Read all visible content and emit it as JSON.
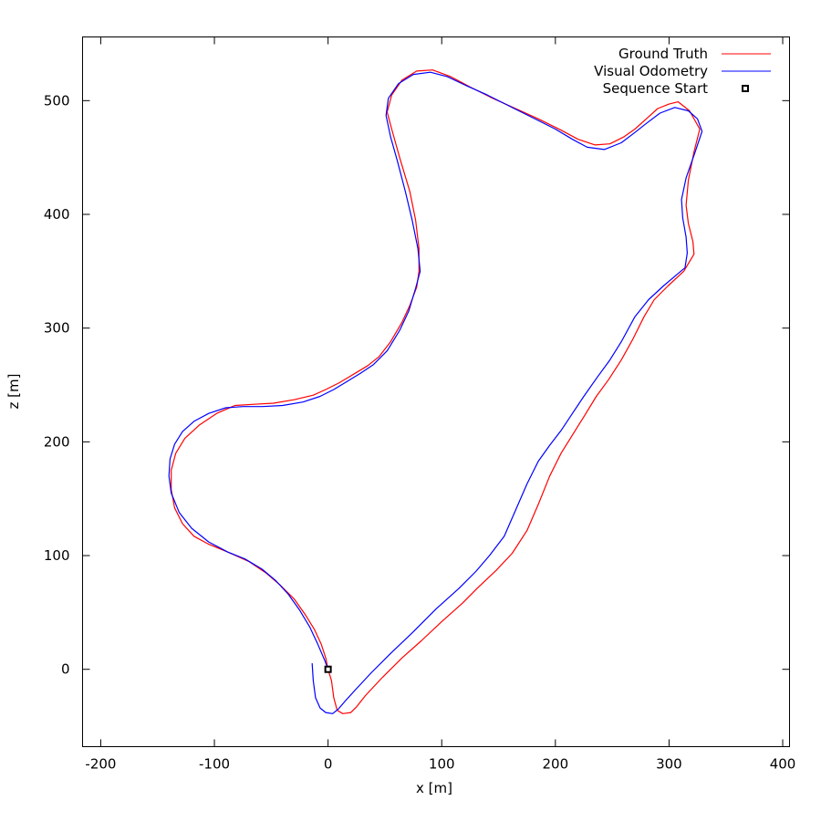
{
  "chart_data": {
    "type": "line",
    "title": "",
    "xlabel": "x [m]",
    "ylabel": "z [m]",
    "xlim": [
      -216,
      406
    ],
    "ylim": [
      -68,
      556
    ],
    "xticks": [
      -200,
      -100,
      0,
      100,
      200,
      300,
      400
    ],
    "yticks": [
      0,
      100,
      200,
      300,
      400,
      500
    ],
    "grid": false,
    "legend_position": "top-right",
    "series": [
      {
        "name": "Ground Truth",
        "color": "#ff0000",
        "points": [
          [
            0,
            0
          ],
          [
            -2,
            10
          ],
          [
            -6,
            22
          ],
          [
            -12,
            35
          ],
          [
            -20,
            48
          ],
          [
            -30,
            62
          ],
          [
            -42,
            74
          ],
          [
            -55,
            85
          ],
          [
            -70,
            95
          ],
          [
            -88,
            103
          ],
          [
            -105,
            110
          ],
          [
            -118,
            117
          ],
          [
            -128,
            128
          ],
          [
            -135,
            142
          ],
          [
            -138,
            158
          ],
          [
            -138,
            175
          ],
          [
            -134,
            190
          ],
          [
            -126,
            203
          ],
          [
            -113,
            215
          ],
          [
            -98,
            225
          ],
          [
            -82,
            232
          ],
          [
            -65,
            233
          ],
          [
            -48,
            234
          ],
          [
            -30,
            237
          ],
          [
            -13,
            241
          ],
          [
            -2,
            246
          ],
          [
            10,
            252
          ],
          [
            25,
            261
          ],
          [
            35,
            267
          ],
          [
            45,
            275
          ],
          [
            55,
            288
          ],
          [
            65,
            305
          ],
          [
            72,
            320
          ],
          [
            78,
            336
          ],
          [
            80,
            350
          ],
          [
            80,
            370
          ],
          [
            77,
            395
          ],
          [
            72,
            420
          ],
          [
            63,
            450
          ],
          [
            56,
            475
          ],
          [
            52,
            490
          ],
          [
            56,
            505
          ],
          [
            65,
            518
          ],
          [
            78,
            526
          ],
          [
            92,
            527
          ],
          [
            108,
            521
          ],
          [
            125,
            512
          ],
          [
            145,
            502
          ],
          [
            165,
            493
          ],
          [
            185,
            484
          ],
          [
            205,
            474
          ],
          [
            220,
            466
          ],
          [
            235,
            461
          ],
          [
            248,
            462
          ],
          [
            260,
            468
          ],
          [
            270,
            475
          ],
          [
            280,
            484
          ],
          [
            290,
            493
          ],
          [
            300,
            497
          ],
          [
            308,
            499
          ],
          [
            318,
            491
          ],
          [
            327,
            475
          ],
          [
            322,
            455
          ],
          [
            317,
            430
          ],
          [
            315,
            408
          ],
          [
            317,
            392
          ],
          [
            321,
            376
          ],
          [
            322,
            365
          ],
          [
            313,
            350
          ],
          [
            299,
            337
          ],
          [
            287,
            325
          ],
          [
            278,
            310
          ],
          [
            268,
            290
          ],
          [
            258,
            272
          ],
          [
            247,
            255
          ],
          [
            236,
            240
          ],
          [
            225,
            222
          ],
          [
            215,
            206
          ],
          [
            205,
            190
          ],
          [
            195,
            170
          ],
          [
            185,
            145
          ],
          [
            175,
            122
          ],
          [
            162,
            102
          ],
          [
            148,
            87
          ],
          [
            132,
            72
          ],
          [
            118,
            58
          ],
          [
            100,
            42
          ],
          [
            82,
            25
          ],
          [
            65,
            10
          ],
          [
            48,
            -7
          ],
          [
            33,
            -23
          ],
          [
            25,
            -33
          ],
          [
            20,
            -38
          ],
          [
            13,
            -39
          ],
          [
            8,
            -36
          ],
          [
            5,
            -25
          ],
          [
            3,
            -10
          ],
          [
            0,
            0
          ]
        ]
      },
      {
        "name": "Visual Odometry",
        "color": "#0000ff",
        "points": [
          [
            -14,
            5
          ],
          [
            -13,
            -10
          ],
          [
            -11,
            -25
          ],
          [
            -7,
            -34
          ],
          [
            -2,
            -38
          ],
          [
            4,
            -39
          ],
          [
            9,
            -35
          ],
          [
            15,
            -28
          ],
          [
            25,
            -17
          ],
          [
            38,
            -3
          ],
          [
            55,
            14
          ],
          [
            75,
            33
          ],
          [
            95,
            53
          ],
          [
            115,
            71
          ],
          [
            130,
            86
          ],
          [
            142,
            100
          ],
          [
            155,
            117
          ],
          [
            165,
            140
          ],
          [
            175,
            163
          ],
          [
            185,
            183
          ],
          [
            195,
            197
          ],
          [
            205,
            210
          ],
          [
            215,
            225
          ],
          [
            225,
            240
          ],
          [
            237,
            257
          ],
          [
            248,
            272
          ],
          [
            258,
            288
          ],
          [
            270,
            310
          ],
          [
            282,
            325
          ],
          [
            295,
            337
          ],
          [
            308,
            348
          ],
          [
            314,
            353
          ],
          [
            316,
            366
          ],
          [
            315,
            380
          ],
          [
            312,
            397
          ],
          [
            311,
            413
          ],
          [
            315,
            432
          ],
          [
            323,
            455
          ],
          [
            329,
            473
          ],
          [
            325,
            484
          ],
          [
            317,
            491
          ],
          [
            305,
            494
          ],
          [
            292,
            489
          ],
          [
            280,
            480
          ],
          [
            270,
            472
          ],
          [
            258,
            463
          ],
          [
            243,
            457
          ],
          [
            228,
            459
          ],
          [
            215,
            466
          ],
          [
            200,
            475
          ],
          [
            180,
            485
          ],
          [
            160,
            495
          ],
          [
            140,
            505
          ],
          [
            122,
            513
          ],
          [
            105,
            521
          ],
          [
            90,
            525
          ],
          [
            75,
            523
          ],
          [
            62,
            515
          ],
          [
            53,
            502
          ],
          [
            51,
            487
          ],
          [
            55,
            468
          ],
          [
            61,
            447
          ],
          [
            68,
            420
          ],
          [
            74,
            395
          ],
          [
            79,
            370
          ],
          [
            81,
            350
          ],
          [
            77,
            335
          ],
          [
            71,
            315
          ],
          [
            63,
            298
          ],
          [
            52,
            280
          ],
          [
            40,
            268
          ],
          [
            28,
            260
          ],
          [
            15,
            252
          ],
          [
            5,
            246
          ],
          [
            -7,
            240
          ],
          [
            -22,
            235
          ],
          [
            -40,
            232
          ],
          [
            -58,
            231
          ],
          [
            -75,
            231
          ],
          [
            -90,
            230
          ],
          [
            -105,
            225
          ],
          [
            -118,
            218
          ],
          [
            -128,
            209
          ],
          [
            -135,
            198
          ],
          [
            -139,
            185
          ],
          [
            -140,
            170
          ],
          [
            -138,
            155
          ],
          [
            -131,
            138
          ],
          [
            -120,
            124
          ],
          [
            -105,
            112
          ],
          [
            -88,
            103
          ],
          [
            -73,
            97
          ],
          [
            -58,
            88
          ],
          [
            -46,
            78
          ],
          [
            -35,
            66
          ],
          [
            -25,
            52
          ],
          [
            -16,
            37
          ],
          [
            -9,
            22
          ],
          [
            -3,
            8
          ],
          [
            0,
            0
          ]
        ]
      }
    ],
    "markers": [
      {
        "name": "Sequence Start",
        "x": 0,
        "y": 0,
        "shape": "square",
        "color": "#000000"
      }
    ]
  }
}
